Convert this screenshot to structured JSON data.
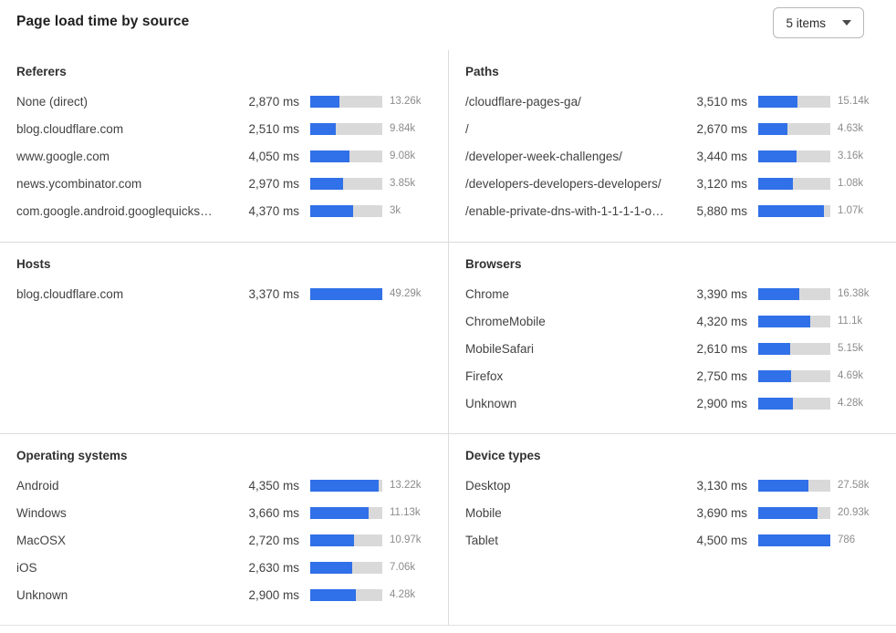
{
  "header": {
    "title": "Page load time by source",
    "items_dropdown": "5 items"
  },
  "colors": {
    "bar_fill": "#3070e8",
    "bar_track": "#d9d9d9",
    "divider": "#dcdcdc"
  },
  "sections": [
    {
      "id": "referers",
      "title": "Referers",
      "rows": [
        {
          "label": "None (direct)",
          "time": "2,870 ms",
          "count": "13.26k",
          "bar_pct": 41
        },
        {
          "label": "blog.cloudflare.com",
          "time": "2,510 ms",
          "count": "9.84k",
          "bar_pct": 36
        },
        {
          "label": "www.google.com",
          "time": "4,050 ms",
          "count": "9.08k",
          "bar_pct": 54
        },
        {
          "label": "news.ycombinator.com",
          "time": "2,970 ms",
          "count": "3.85k",
          "bar_pct": 45
        },
        {
          "label": "com.google.android.googlequicksearc...",
          "time": "4,370 ms",
          "count": "3k",
          "bar_pct": 59
        }
      ]
    },
    {
      "id": "paths",
      "title": "Paths",
      "rows": [
        {
          "label": "/cloudflare-pages-ga/",
          "time": "3,510 ms",
          "count": "15.14k",
          "bar_pct": 54
        },
        {
          "label": "/",
          "time": "2,670 ms",
          "count": "4.63k",
          "bar_pct": 41
        },
        {
          "label": "/developer-week-challenges/",
          "time": "3,440 ms",
          "count": "3.16k",
          "bar_pct": 53
        },
        {
          "label": "/developers-developers-developers/",
          "time": "3,120 ms",
          "count": "1.08k",
          "bar_pct": 48
        },
        {
          "label": "/enable-private-dns-with-1-1-1-1-on-...",
          "time": "5,880 ms",
          "count": "1.07k",
          "bar_pct": 91
        }
      ]
    },
    {
      "id": "hosts",
      "title": "Hosts",
      "rows": [
        {
          "label": "blog.cloudflare.com",
          "time": "3,370 ms",
          "count": "49.29k",
          "bar_pct": 100
        }
      ]
    },
    {
      "id": "browsers",
      "title": "Browsers",
      "rows": [
        {
          "label": "Chrome",
          "time": "3,390 ms",
          "count": "16.38k",
          "bar_pct": 57
        },
        {
          "label": "ChromeMobile",
          "time": "4,320 ms",
          "count": "11.1k",
          "bar_pct": 72
        },
        {
          "label": "MobileSafari",
          "time": "2,610 ms",
          "count": "5.15k",
          "bar_pct": 44
        },
        {
          "label": "Firefox",
          "time": "2,750 ms",
          "count": "4.69k",
          "bar_pct": 46
        },
        {
          "label": "Unknown",
          "time": "2,900 ms",
          "count": "4.28k",
          "bar_pct": 48
        }
      ]
    },
    {
      "id": "operating-systems",
      "title": "Operating systems",
      "rows": [
        {
          "label": "Android",
          "time": "4,350 ms",
          "count": "13.22k",
          "bar_pct": 95
        },
        {
          "label": "Windows",
          "time": "3,660 ms",
          "count": "11.13k",
          "bar_pct": 81
        },
        {
          "label": "MacOSX",
          "time": "2,720 ms",
          "count": "10.97k",
          "bar_pct": 61
        },
        {
          "label": "iOS",
          "time": "2,630 ms",
          "count": "7.06k",
          "bar_pct": 58
        },
        {
          "label": "Unknown",
          "time": "2,900 ms",
          "count": "4.28k",
          "bar_pct": 63
        }
      ]
    },
    {
      "id": "device-types",
      "title": "Device types",
      "rows": [
        {
          "label": "Desktop",
          "time": "3,130 ms",
          "count": "27.58k",
          "bar_pct": 70
        },
        {
          "label": "Mobile",
          "time": "3,690 ms",
          "count": "20.93k",
          "bar_pct": 82
        },
        {
          "label": "Tablet",
          "time": "4,500 ms",
          "count": "786",
          "bar_pct": 100
        }
      ]
    }
  ],
  "chart_data": [
    {
      "type": "bar",
      "orientation": "horizontal",
      "title": "Referers",
      "categories": [
        "None (direct)",
        "blog.cloudflare.com",
        "www.google.com",
        "news.ycombinator.com",
        "com.google.android.googlequicksearc..."
      ],
      "values": [
        2870,
        2510,
        4050,
        2970,
        4370
      ],
      "value_unit": "ms",
      "counts": [
        "13.26k",
        "9.84k",
        "9.08k",
        "3.85k",
        "3k"
      ]
    },
    {
      "type": "bar",
      "orientation": "horizontal",
      "title": "Paths",
      "categories": [
        "/cloudflare-pages-ga/",
        "/",
        "/developer-week-challenges/",
        "/developers-developers-developers/",
        "/enable-private-dns-with-1-1-1-1-on-..."
      ],
      "values": [
        3510,
        2670,
        3440,
        3120,
        5880
      ],
      "value_unit": "ms",
      "counts": [
        "15.14k",
        "4.63k",
        "3.16k",
        "1.08k",
        "1.07k"
      ]
    },
    {
      "type": "bar",
      "orientation": "horizontal",
      "title": "Hosts",
      "categories": [
        "blog.cloudflare.com"
      ],
      "values": [
        3370
      ],
      "value_unit": "ms",
      "counts": [
        "49.29k"
      ]
    },
    {
      "type": "bar",
      "orientation": "horizontal",
      "title": "Browsers",
      "categories": [
        "Chrome",
        "ChromeMobile",
        "MobileSafari",
        "Firefox",
        "Unknown"
      ],
      "values": [
        3390,
        4320,
        2610,
        2750,
        2900
      ],
      "value_unit": "ms",
      "counts": [
        "16.38k",
        "11.1k",
        "5.15k",
        "4.69k",
        "4.28k"
      ]
    },
    {
      "type": "bar",
      "orientation": "horizontal",
      "title": "Operating systems",
      "categories": [
        "Android",
        "Windows",
        "MacOSX",
        "iOS",
        "Unknown"
      ],
      "values": [
        4350,
        3660,
        2720,
        2630,
        2900
      ],
      "value_unit": "ms",
      "counts": [
        "13.22k",
        "11.13k",
        "10.97k",
        "7.06k",
        "4.28k"
      ]
    },
    {
      "type": "bar",
      "orientation": "horizontal",
      "title": "Device types",
      "categories": [
        "Desktop",
        "Mobile",
        "Tablet"
      ],
      "values": [
        3130,
        3690,
        4500
      ],
      "value_unit": "ms",
      "counts": [
        "27.58k",
        "20.93k",
        "786"
      ]
    }
  ]
}
